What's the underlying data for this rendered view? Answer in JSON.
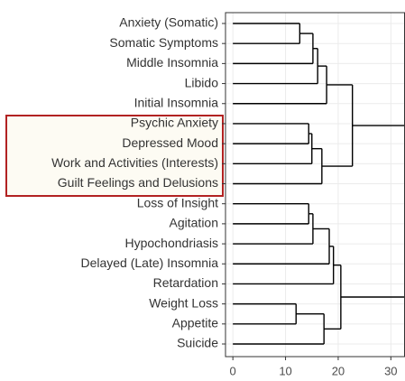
{
  "chart_data": {
    "type": "dendrogram",
    "labels": [
      "Anxiety (Somatic)",
      "Somatic Symptoms",
      "Middle Insomnia",
      "Libido",
      "Initial Insomnia",
      "Psychic Anxiety",
      "Depressed Mood",
      "Work and Activities (Interests)",
      "Guilt Feelings and Delusions",
      "Loss of Insight",
      "Agitation",
      "Hypochondriasis",
      "Delayed (Late) Insomnia",
      "Retardation",
      "Weight Loss",
      "Appetite",
      "Suicide"
    ],
    "merges": [
      {
        "children": [
          0,
          1
        ],
        "height": 12.7
      },
      {
        "children": [
          17,
          2
        ],
        "height": 15.2
      },
      {
        "children": [
          18,
          3
        ],
        "height": 16.1
      },
      {
        "children": [
          19,
          4
        ],
        "height": 17.8
      },
      {
        "children": [
          5,
          6
        ],
        "height": 14.4
      },
      {
        "children": [
          21,
          7
        ],
        "height": 15.0
      },
      {
        "children": [
          22,
          8
        ],
        "height": 16.9
      },
      {
        "children": [
          20,
          23
        ],
        "height": 22.7
      },
      {
        "children": [
          9,
          10
        ],
        "height": 14.4
      },
      {
        "children": [
          25,
          11
        ],
        "height": 15.2
      },
      {
        "children": [
          26,
          12
        ],
        "height": 18.3
      },
      {
        "children": [
          27,
          13
        ],
        "height": 19.1
      },
      {
        "children": [
          14,
          15
        ],
        "height": 12.0
      },
      {
        "children": [
          29,
          16
        ],
        "height": 17.3
      },
      {
        "children": [
          28,
          30
        ],
        "height": 20.5
      },
      {
        "children": [
          24,
          31
        ],
        "height": 34
      }
    ],
    "xlim": [
      -1.4,
      32.6
    ],
    "xticks": [
      0,
      10,
      20,
      30
    ],
    "grid": true,
    "color": "#000000"
  }
}
